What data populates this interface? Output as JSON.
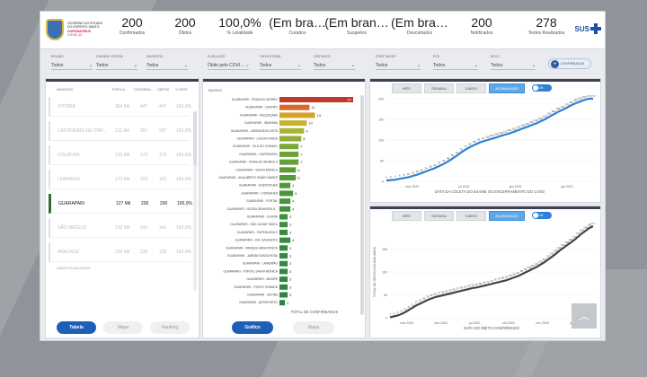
{
  "header": {
    "logo_lines": [
      "GOVERNO DO ESTADO",
      "DO ESPÍRITO SANTO",
      "CORONAVÍRUS",
      "COVID-19"
    ],
    "kpis": [
      {
        "value": "200",
        "label": "Confirmados"
      },
      {
        "value": "200",
        "label": "Óbitos"
      },
      {
        "value": "100,0%",
        "label": "% Letalidade"
      },
      {
        "value": "(Em bra…",
        "label": "Curados"
      },
      {
        "value": "(Em bran…",
        "label": "Suspeitos"
      },
      {
        "value": "(Em bra…",
        "label": "Descartados"
      },
      {
        "value": "200",
        "label": "Notificados"
      },
      {
        "value": "278",
        "label": "Testes Realizados"
      }
    ],
    "sus": "SUS"
  },
  "left_panel": {
    "filters": [
      {
        "label": "REGIÃO",
        "value": "Todos"
      },
      {
        "label": "GRANDE VITÓRIA",
        "value": "Todos"
      },
      {
        "label": "MUNICÍPIO",
        "value": "Todos"
      }
    ],
    "columns": [
      "MUNICÍPIO",
      "POPULA...",
      "CONFIRMA...",
      "ÓBITOS",
      "% OBTS"
    ],
    "rows": [
      {
        "name": "VITÓRIA",
        "pop": "364 Mil",
        "conf": "447",
        "obitos": "447",
        "pct": "100,0%",
        "selected": false
      },
      {
        "name": "CACHOEIRO DE ITAP...",
        "pop": "211 Mil",
        "conf": "297",
        "obitos": "297",
        "pct": "100,0%",
        "selected": false
      },
      {
        "name": "COLATINA",
        "pop": "123 Mil",
        "conf": "172",
        "obitos": "172",
        "pct": "100,0%",
        "selected": false
      },
      {
        "name": "LINHARES",
        "pop": "172 Mil",
        "conf": "152",
        "obitos": "152",
        "pct": "100,0%",
        "selected": false
      },
      {
        "name": "GUARAPARI",
        "pop": "127 Mil",
        "conf": "200",
        "obitos": "200",
        "pct": "100,0%",
        "selected": true
      },
      {
        "name": "SÃO MATEUS",
        "pop": "130 Mil",
        "conf": "141",
        "obitos": "141",
        "pct": "100,0%",
        "selected": false
      },
      {
        "name": "ARACRUZ",
        "pop": "102 Mil",
        "conf": "130",
        "obitos": "130",
        "pct": "100,0%",
        "selected": false
      }
    ],
    "footnote": "DADOS ATUALIZADOS",
    "tabs": [
      {
        "label": "Tabela",
        "active": true
      },
      {
        "label": "Mapa",
        "active": false
      },
      {
        "label": "Ranking",
        "active": false
      }
    ]
  },
  "mid_panel": {
    "filters": [
      {
        "label": "EVOLUÇÃO",
        "value": "Óbito pelo COVI..."
      },
      {
        "label": "FAIXA ETÁRIA",
        "value": "Todos"
      },
      {
        "label": "GESTANTE",
        "value": "Todos"
      }
    ],
    "tabs": [
      {
        "label": "Gráfico",
        "active": true
      },
      {
        "label": "Mapa",
        "active": false
      }
    ]
  },
  "right_panel": {
    "filters": [
      {
        "label": "PROF SAÚDE",
        "value": "Todos"
      },
      {
        "label": "PCD",
        "value": "Todos"
      },
      {
        "label": "SEXO",
        "value": "Todos"
      }
    ],
    "chip": "CONFIRMADOS",
    "top_chart_tabs": [
      {
        "label": "MÊS",
        "active": false
      },
      {
        "label": "SEMANA",
        "active": false
      },
      {
        "label": "DIÁRIO",
        "active": false
      },
      {
        "label": "ACUMULADO",
        "active": true
      }
    ],
    "bottom_chart_tabs": [
      {
        "label": "MÊS",
        "active": false
      },
      {
        "label": "SEMANA",
        "active": false
      },
      {
        "label": "DIÁRIO",
        "active": false
      },
      {
        "label": "ACUMULADO",
        "active": true
      }
    ],
    "toggle_label": "LIN"
  },
  "chart_data": [
    {
      "type": "bar",
      "title": "BAIRRO",
      "xlabel": "TOTAL DE CONFIRMADOS",
      "orientation": "horizontal",
      "categories": [
        "GUARAPARI - PRAIA DO MORRO",
        "GUARAPARI - CENTRO",
        "GUARAPARI - MUQUIÇABA",
        "GUARAPARI - IBIAPABA",
        "GUARAPARI - JARDIM BOA VISTA",
        "GUARAPARI - LAGOA FUNDA",
        "GUARAPARI - VILA DO CURADO",
        "GUARAPARI - ITAPEBUSSU",
        "GUARAPARI - PRAIA DO MORRO II",
        "GUARAPARI - SANTA MÔNICA",
        "GUARAPARI - ADALBERTO SIMÃO NADER",
        "GUARAPARI - KUBITSCHEK",
        "GUARAPARI - CORDADES",
        "GUARAPARI - PORTAL",
        "GUARAPARI - NOSSA SENHORA D...",
        "GUARAPARI - OLARIA",
        "GUARAPARI - SÃO JUDAS TADEU",
        "GUARAPARI - ITAPEBUSSU II",
        "GUARAPARI - SOL NASCENTE",
        "GUARAPARI - PARQUE AREIA PRETA",
        "GUARAPARI - JARDIM SANTA ROSA",
        "GUARAPARI - LAMEIRÃO",
        "GUARAPARI - PORTAL SANTA MÔNICA",
        "GUARAPARI - MEAÍPE",
        "GUARAPARI - PORTO GRANDE",
        "GUARAPARI - SETIBA",
        "GUARAPARI - AEROPORTO"
      ],
      "values": [
        27,
        11,
        13,
        10,
        9,
        8,
        7,
        7,
        7,
        6,
        6,
        4,
        5,
        4,
        4,
        3,
        3,
        3,
        4,
        3,
        3,
        3,
        3,
        3,
        3,
        3,
        2
      ],
      "colors": [
        "#c0392b",
        "#d96b2a",
        "#d4a32a",
        "#c7b52c",
        "#a9b433",
        "#8fae36",
        "#7aa836",
        "#6fa336",
        "#65a037",
        "#5c9c37",
        "#559a38",
        "#4f9739",
        "#4a9539",
        "#45933a",
        "#41913a",
        "#3e8f3b",
        "#3b8d3c",
        "#398c3d",
        "#378b3e",
        "#358a3e",
        "#33893f",
        "#328840",
        "#318740",
        "#308641",
        "#2f8541",
        "#2e8442",
        "#2d8342"
      ]
    },
    {
      "type": "line",
      "xlabel": "DATA DA COLETA DO EXAME OU ENCERRAMENTO DO CASO",
      "x_ticks": [
        "mar 2020",
        "jul 2020",
        "jan 2021",
        "jan 2021"
      ],
      "ylim": [
        0,
        200
      ],
      "y_ticks": [
        0,
        50,
        100,
        150,
        200
      ],
      "color": "#2f80d6",
      "values": [
        2,
        3,
        4,
        6,
        8,
        10,
        13,
        16,
        20,
        24,
        28,
        32,
        37,
        42,
        48,
        55,
        62,
        70,
        77,
        83,
        88,
        93,
        97,
        100,
        103,
        106,
        110,
        113,
        116,
        120,
        124,
        128,
        132,
        136,
        140,
        145,
        150,
        156,
        162,
        168,
        173,
        178,
        184,
        189,
        193,
        197,
        200,
        200
      ],
      "labels": [
        2,
        3,
        4,
        6,
        8,
        10,
        13,
        16,
        20,
        24,
        28,
        32,
        37,
        42,
        48,
        55,
        62,
        70,
        77,
        83,
        88,
        93,
        97,
        100,
        103,
        106,
        110,
        113,
        116,
        120,
        124,
        128,
        132,
        136,
        140,
        145,
        150,
        156,
        162,
        168,
        173,
        178,
        184,
        189,
        193,
        197,
        200,
        200
      ]
    },
    {
      "type": "line",
      "xlabel": "DATA DO ÓBITO CONFIRMADO",
      "ylabel": "TOTAL DE ÓBITOS ACUMULADOS",
      "x_ticks": [
        "mar 2020",
        "mai 2020",
        "jul 2020",
        "set 2020",
        "nov 2020",
        "jan 2021"
      ],
      "ylim": [
        0,
        200
      ],
      "y_ticks": [
        0,
        50,
        100,
        150
      ],
      "color": "#444444",
      "values": [
        1,
        3,
        5,
        8,
        12,
        17,
        22,
        27,
        31,
        35,
        39,
        42,
        45,
        47,
        49,
        51,
        53,
        55,
        57,
        59,
        61,
        63,
        65,
        66,
        68,
        70,
        72,
        74,
        76,
        78,
        80,
        82,
        85,
        88,
        91,
        95,
        99,
        103,
        107,
        111,
        116,
        121,
        127,
        133,
        139,
        146,
        152,
        158,
        164,
        170,
        177,
        184,
        190,
        196,
        200
      ],
      "labels": [
        1,
        3,
        5,
        8,
        12,
        17,
        22,
        27,
        31,
        35,
        39,
        42,
        45,
        47,
        49,
        51,
        53,
        55,
        57,
        59,
        61,
        63,
        65,
        66,
        68,
        70,
        72,
        74,
        76,
        78,
        80,
        82,
        85,
        88,
        91,
        95,
        99,
        103,
        107,
        111,
        116,
        121,
        127,
        133,
        139,
        146,
        152,
        158,
        164,
        170,
        177,
        184,
        190,
        196,
        200
      ]
    }
  ]
}
